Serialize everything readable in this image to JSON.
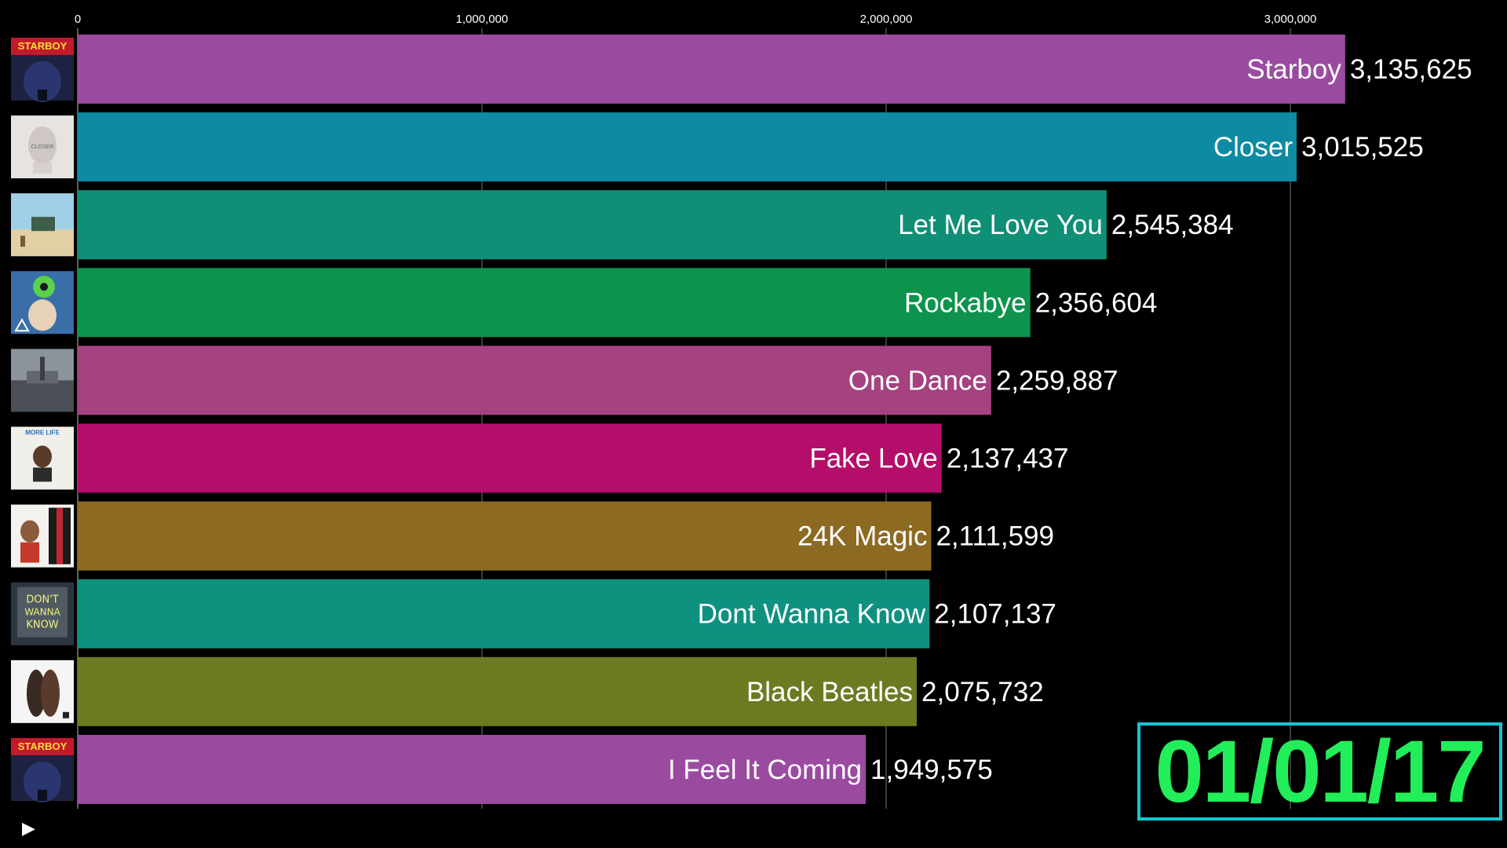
{
  "chart_data": {
    "type": "bar",
    "orientation": "horizontal",
    "date": "01/01/17",
    "xlim": [
      0,
      3400000
    ],
    "ticks": [
      0,
      1000000,
      2000000,
      3000000
    ],
    "tick_labels": [
      "0",
      "1,000,000",
      "2,000,000",
      "3,000,000"
    ],
    "grid": true,
    "bars": [
      {
        "name": "Starboy",
        "value": 3135625,
        "value_label": "3,135,625",
        "color": "#9a4ba0",
        "cover": "starboy"
      },
      {
        "name": "Closer",
        "value": 3015525,
        "value_label": "3,015,525",
        "color": "#0e8aa3",
        "cover": "closer"
      },
      {
        "name": "Let Me Love You",
        "value": 2545384,
        "value_label": "2,545,384",
        "color": "#108f77",
        "cover": "encore"
      },
      {
        "name": "Rockabye",
        "value": 2356604,
        "value_label": "2,356,604",
        "color": "#0e934d",
        "cover": "rockabye"
      },
      {
        "name": "One Dance",
        "value": 2259887,
        "value_label": "2,259,887",
        "color": "#a5427f",
        "cover": "views"
      },
      {
        "name": "Fake Love",
        "value": 2137437,
        "value_label": "2,137,437",
        "color": "#b40d6a",
        "cover": "more-life"
      },
      {
        "name": "24K Magic",
        "value": 2111599,
        "value_label": "2,111,599",
        "color": "#8c6a22",
        "cover": "24k-magic"
      },
      {
        "name": "Dont Wanna Know",
        "value": 2107137,
        "value_label": "2,107,137",
        "color": "#0f9180",
        "cover": "dont-wanna-know"
      },
      {
        "name": "Black Beatles",
        "value": 2075732,
        "value_label": "2,075,732",
        "color": "#6d7a22",
        "cover": "sremmlife"
      },
      {
        "name": "I Feel It Coming",
        "value": 1949575,
        "value_label": "1,949,575",
        "color": "#9a4ba0",
        "cover": "starboy"
      }
    ]
  },
  "cover_art": {
    "starboy_word": "STARBOY",
    "more_life_word": "MORE LIFE",
    "closer_word": "CLOSER",
    "dwk_word": "DON'T WANNA KNOW"
  },
  "controls": {
    "play_icon": "play-icon",
    "play_glyph": "▶"
  }
}
